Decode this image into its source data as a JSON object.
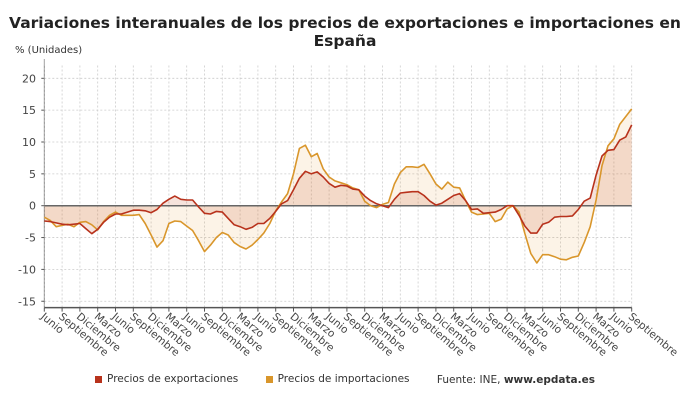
{
  "chart_data": {
    "type": "line",
    "title": "Variaciones interanuales de los precios de exportaciones e importaciones en España",
    "ylabel": "% (Unidades)",
    "ylim": [
      -16,
      22
    ],
    "yticks": [
      20,
      15,
      10,
      5,
      0,
      -5,
      -10,
      -15
    ],
    "grid": true,
    "legend_position": "bottom",
    "x_tick_labels": [
      "Junio",
      "Septiembre",
      "Diciembre",
      "Marzo",
      "Junio",
      "Septiembre",
      "Diciembre",
      "Marzo",
      "Junio",
      "Septiembre",
      "Diciembre",
      "Marzo",
      "Junio",
      "Septiembre",
      "Diciembre",
      "Marzo",
      "Junio",
      "Septiembre",
      "Diciembre",
      "Marzo",
      "Junio",
      "Septiembre",
      "Diciembre",
      "Marzo",
      "Junio",
      "Septiembre",
      "Diciembre",
      "Marzo",
      "Junio",
      "Septiembre",
      "Diciembre",
      "Marzo",
      "Junio",
      "Septiembre"
    ],
    "series": [
      {
        "name": "Precios de exportaciones",
        "color": "#b8321c",
        "values": [
          -2.4,
          -2.5,
          -2.7,
          -2.9,
          -3.0,
          -2.9,
          -2.8,
          -3.6,
          -4.4,
          -3.7,
          -2.6,
          -1.8,
          -1.3,
          -1.3,
          -1.0,
          -0.7,
          -0.7,
          -0.8,
          -1.1,
          -0.6,
          0.4,
          1.0,
          1.5,
          1.0,
          0.9,
          0.9,
          -0.2,
          -1.2,
          -1.3,
          -0.9,
          -1.0,
          -2.0,
          -3.0,
          -3.3,
          -3.7,
          -3.4,
          -2.8,
          -2.8,
          -2.0,
          -0.9,
          0.3,
          0.8,
          2.5,
          4.3,
          5.4,
          5.0,
          5.3,
          4.5,
          3.5,
          2.9,
          3.2,
          3.1,
          2.6,
          2.5,
          1.5,
          0.8,
          0.3,
          0.0,
          -0.3,
          1.0,
          2.0,
          2.1,
          2.2,
          2.2,
          1.6,
          0.7,
          0.1,
          0.4,
          1.0,
          1.6,
          1.9,
          0.8,
          -0.6,
          -0.5,
          -1.2,
          -1.1,
          -1.0,
          -0.6,
          0.0,
          0.0,
          -1.5,
          -3.2,
          -4.3,
          -4.3,
          -2.9,
          -2.6,
          -1.8,
          -1.7,
          -1.7,
          -1.6,
          -0.6,
          0.7,
          1.2,
          4.8,
          7.8,
          8.7,
          8.8,
          10.3,
          10.8,
          12.7
        ]
      },
      {
        "name": "Precios de importaciones",
        "color": "#d9962b",
        "values": [
          -1.8,
          -2.3,
          -3.3,
          -3.1,
          -2.9,
          -3.3,
          -2.6,
          -2.5,
          -3.0,
          -3.8,
          -2.5,
          -1.5,
          -1.0,
          -1.5,
          -1.5,
          -1.5,
          -1.4,
          -2.8,
          -4.6,
          -6.5,
          -5.5,
          -2.8,
          -2.4,
          -2.5,
          -3.2,
          -3.9,
          -5.5,
          -7.2,
          -6.2,
          -5.0,
          -4.2,
          -4.6,
          -5.8,
          -6.4,
          -6.8,
          -6.2,
          -5.3,
          -4.3,
          -2.8,
          -0.8,
          0.6,
          1.9,
          5.0,
          9.0,
          9.5,
          7.7,
          8.2,
          5.8,
          4.5,
          3.9,
          3.6,
          3.3,
          2.8,
          2.5,
          0.7,
          0.0,
          -0.3,
          0.2,
          0.5,
          3.4,
          5.2,
          6.1,
          6.1,
          6.0,
          6.5,
          5.0,
          3.4,
          2.6,
          3.7,
          2.9,
          2.8,
          0.8,
          -1.0,
          -1.4,
          -1.3,
          -1.2,
          -2.5,
          -2.1,
          -0.5,
          0.0,
          -1.0,
          -4.4,
          -7.5,
          -9.0,
          -7.7,
          -7.7,
          -8.0,
          -8.4,
          -8.5,
          -8.1,
          -7.9,
          -5.8,
          -3.3,
          0.9,
          6.3,
          9.4,
          10.5,
          12.8,
          14.0,
          15.2
        ]
      }
    ]
  },
  "source": {
    "label": "Fuente: INE, ",
    "site": "www.epdata.es"
  }
}
